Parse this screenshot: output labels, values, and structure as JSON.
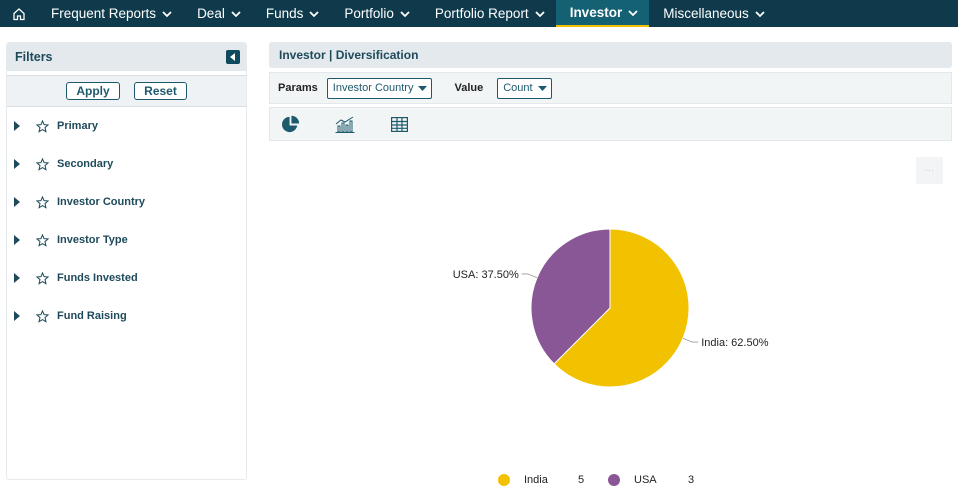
{
  "nav": {
    "items": [
      {
        "label": "Frequent Reports"
      },
      {
        "label": "Deal"
      },
      {
        "label": "Funds"
      },
      {
        "label": "Portfolio"
      },
      {
        "label": "Portfolio Report"
      },
      {
        "label": "Investor",
        "active": true
      },
      {
        "label": "Miscellaneous"
      }
    ]
  },
  "filters": {
    "title": "Filters",
    "apply_label": "Apply",
    "reset_label": "Reset",
    "items": [
      {
        "label": "Primary"
      },
      {
        "label": "Secondary"
      },
      {
        "label": "Investor Country"
      },
      {
        "label": "Investor Type"
      },
      {
        "label": "Funds Invested"
      },
      {
        "label": "Fund Raising"
      }
    ]
  },
  "main": {
    "title": "Investor | Diversification",
    "params_label": "Params",
    "params_value": "Investor Country",
    "value_label": "Value",
    "value_value": "Count",
    "menu_glyph": "···"
  },
  "chart_data": {
    "type": "pie",
    "slices": [
      {
        "name": "India",
        "value": 5,
        "label": "India: 62.50%",
        "color": "#f2c100"
      },
      {
        "name": "USA",
        "value": 3,
        "label": "USA: 37.50%",
        "color": "#8a5796"
      }
    ]
  },
  "colors": {
    "nav_bg": "#0e3a4b",
    "nav_active": "#136173",
    "accent": "#f0c000"
  }
}
